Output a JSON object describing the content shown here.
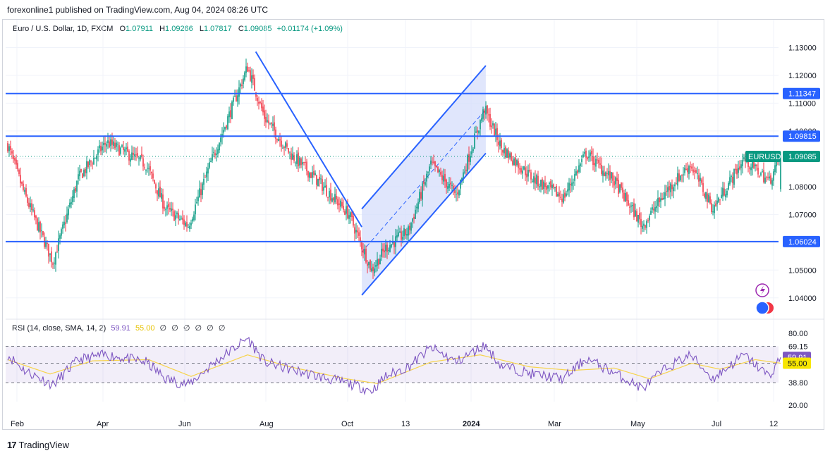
{
  "header": {
    "publisher_line": "forexonline1 published on TradingView.com, Aug 04, 2024 08:26 UTC"
  },
  "legend": {
    "title": "Euro / U.S. Dollar, 1D, FXCM",
    "open_label": "O",
    "open": "1.07911",
    "high_label": "H",
    "high": "1.09266",
    "low_label": "L",
    "low": "1.07817",
    "close_label": "C",
    "close": "1.09085",
    "change": "+0.01174 (+1.09%)"
  },
  "rsi_legend": {
    "text": "RSI (14, close, SMA, 14, 2)",
    "rsi_value": "59.91",
    "sma_value": "55.00",
    "placeholders": [
      "∅",
      "∅",
      "∅",
      "∅",
      "∅",
      "∅"
    ]
  },
  "footer": {
    "brand": "TradingView",
    "logo_text": "17"
  },
  "colors": {
    "up": "#089981",
    "down": "#f23645",
    "hline": "#2962ff",
    "rsi": "#7e57c2",
    "rsi_sma": "#f7d44c",
    "channel_fill": "#d6defb"
  },
  "chart_data": {
    "type": "candlestick",
    "symbol": "EURUSD",
    "interval": "1D",
    "price_axis": {
      "ticks": [
        "1.13000",
        "1.12000",
        "1.11000",
        "1.10000",
        "1.09000",
        "1.08000",
        "1.07000",
        "1.06000",
        "1.05000",
        "1.04000"
      ],
      "range": [
        1.0364,
        1.1324
      ]
    },
    "time_axis": {
      "labels": [
        "Feb",
        "Apr",
        "Jun",
        "Aug",
        "Oct",
        "13",
        "2024",
        "Mar",
        "May",
        "Jul",
        "12"
      ]
    },
    "horizontal_lines": [
      {
        "price": 1.11347,
        "label": "1.11347"
      },
      {
        "price": 1.09815,
        "label": "1.09815"
      },
      {
        "price": 1.06024,
        "label": "1.06024"
      }
    ],
    "price_tags": [
      {
        "label": "EURUSD",
        "value": "1.09085",
        "price": 1.09085
      }
    ],
    "trend_lines": [
      {
        "name": "downtrend",
        "from": [
          "2023-07-18",
          1.1285
        ],
        "to": [
          "2023-10-03",
          1.0655
        ]
      },
      {
        "name": "channel-upper",
        "from": [
          "2023-10-03",
          1.072
        ],
        "to": [
          "2024-01-01",
          1.1235
        ]
      },
      {
        "name": "channel-lower",
        "from": [
          "2023-10-03",
          1.041
        ],
        "to": [
          "2024-01-01",
          1.092
        ]
      }
    ],
    "anchors": [
      [
        0,
        1.095
      ],
      [
        12,
        1.077
      ],
      [
        32,
        1.053
      ],
      [
        50,
        1.083
      ],
      [
        70,
        1.096
      ],
      [
        98,
        1.088
      ],
      [
        112,
        1.072
      ],
      [
        128,
        1.066
      ],
      [
        145,
        1.09
      ],
      [
        170,
        1.123
      ],
      [
        182,
        1.105
      ],
      [
        200,
        1.092
      ],
      [
        220,
        1.082
      ],
      [
        242,
        1.07
      ],
      [
        258,
        1.05
      ],
      [
        268,
        1.058
      ],
      [
        284,
        1.064
      ],
      [
        300,
        1.088
      ],
      [
        318,
        1.077
      ],
      [
        338,
        1.108
      ],
      [
        350,
        1.094
      ],
      [
        372,
        1.083
      ],
      [
        394,
        1.076
      ],
      [
        410,
        1.092
      ],
      [
        430,
        1.082
      ],
      [
        450,
        1.066
      ],
      [
        468,
        1.079
      ],
      [
        484,
        1.088
      ],
      [
        500,
        1.072
      ],
      [
        522,
        1.09
      ],
      [
        540,
        1.082
      ],
      [
        548,
        1.0909
      ]
    ],
    "rsi": {
      "axis_ticks": [
        "80.00",
        "69.15",
        "38.80",
        "20.00"
      ],
      "range": [
        17,
        83
      ],
      "levels": [
        69.15,
        55.0,
        38.8
      ],
      "value": 59.91,
      "sma": 55.0,
      "anchors": [
        [
          0,
          62
        ],
        [
          12,
          49
        ],
        [
          32,
          37
        ],
        [
          50,
          58
        ],
        [
          70,
          62
        ],
        [
          98,
          56
        ],
        [
          112,
          42
        ],
        [
          128,
          37
        ],
        [
          145,
          54
        ],
        [
          170,
          76
        ],
        [
          182,
          56
        ],
        [
          200,
          50
        ],
        [
          220,
          44
        ],
        [
          242,
          38
        ],
        [
          258,
          32
        ],
        [
          268,
          44
        ],
        [
          284,
          52
        ],
        [
          300,
          68
        ],
        [
          318,
          56
        ],
        [
          338,
          70
        ],
        [
          350,
          53
        ],
        [
          372,
          46
        ],
        [
          394,
          42
        ],
        [
          410,
          59
        ],
        [
          430,
          47
        ],
        [
          450,
          34
        ],
        [
          468,
          52
        ],
        [
          484,
          62
        ],
        [
          500,
          42
        ],
        [
          522,
          62
        ],
        [
          540,
          44
        ],
        [
          548,
          59.91
        ]
      ],
      "sma_anchors": [
        [
          0,
          58
        ],
        [
          30,
          46
        ],
        [
          60,
          57
        ],
        [
          100,
          58
        ],
        [
          130,
          44
        ],
        [
          170,
          62
        ],
        [
          200,
          52
        ],
        [
          240,
          42
        ],
        [
          262,
          38
        ],
        [
          300,
          56
        ],
        [
          335,
          62
        ],
        [
          370,
          52
        ],
        [
          400,
          49
        ],
        [
          430,
          51
        ],
        [
          455,
          42
        ],
        [
          485,
          55
        ],
        [
          505,
          50
        ],
        [
          530,
          58
        ],
        [
          548,
          55
        ]
      ]
    }
  }
}
